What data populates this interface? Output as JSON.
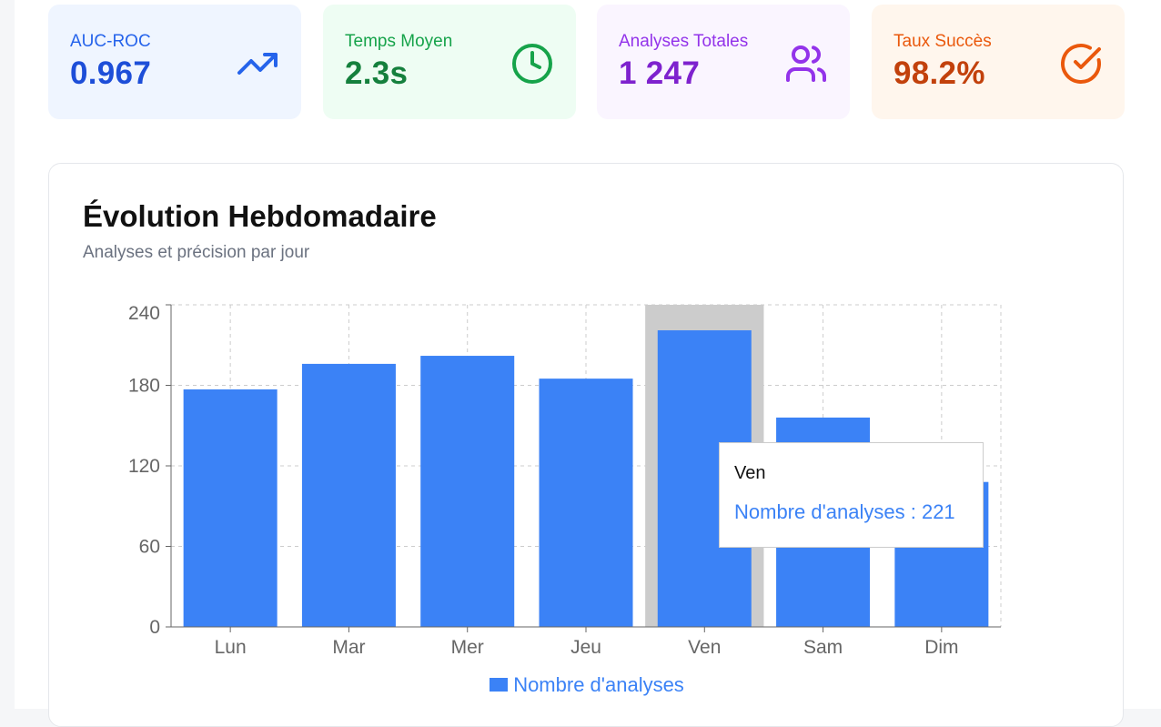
{
  "stats": [
    {
      "label": "AUC-ROC",
      "value": "0.967",
      "icon": "trending-up-icon",
      "bg": "#eff5ff",
      "label_color": "#2563eb",
      "value_color": "#1d4ed8",
      "icon_color": "#2563eb"
    },
    {
      "label": "Temps Moyen",
      "value": "2.3s",
      "icon": "clock-icon",
      "bg": "#eefdf3",
      "label_color": "#16a34a",
      "value_color": "#15803d",
      "icon_color": "#16a34a"
    },
    {
      "label": "Analyses Totales",
      "value": "1 247",
      "icon": "users-icon",
      "bg": "#faf5ff",
      "label_color": "#9333ea",
      "value_color": "#7e22ce",
      "icon_color": "#9333ea"
    },
    {
      "label": "Taux Succès",
      "value": "98.2%",
      "icon": "check-circle-icon",
      "bg": "#fff6ed",
      "label_color": "#ea580c",
      "value_color": "#c2410c",
      "icon_color": "#ea580c"
    }
  ],
  "chart_panel": {
    "title": "Évolution Hebdomadaire",
    "subtitle": "Analyses et précision par jour"
  },
  "tooltip": {
    "category": "Ven",
    "text": "Nombre d'analyses : 221"
  },
  "chart_data": {
    "type": "bar",
    "categories": [
      "Lun",
      "Mar",
      "Mer",
      "Jeu",
      "Ven",
      "Sam",
      "Dim"
    ],
    "series": [
      {
        "name": "Nombre d'analyses",
        "values": [
          177,
          196,
          202,
          185,
          221,
          156,
          108
        ],
        "color": "#3b82f6"
      }
    ],
    "ylim": [
      0,
      240
    ],
    "yticks": [
      0,
      60,
      120,
      180,
      240
    ],
    "grid": true,
    "legend": "bottom-center",
    "highlighted_category": "Ven",
    "highlight_color": "#cccccc"
  }
}
